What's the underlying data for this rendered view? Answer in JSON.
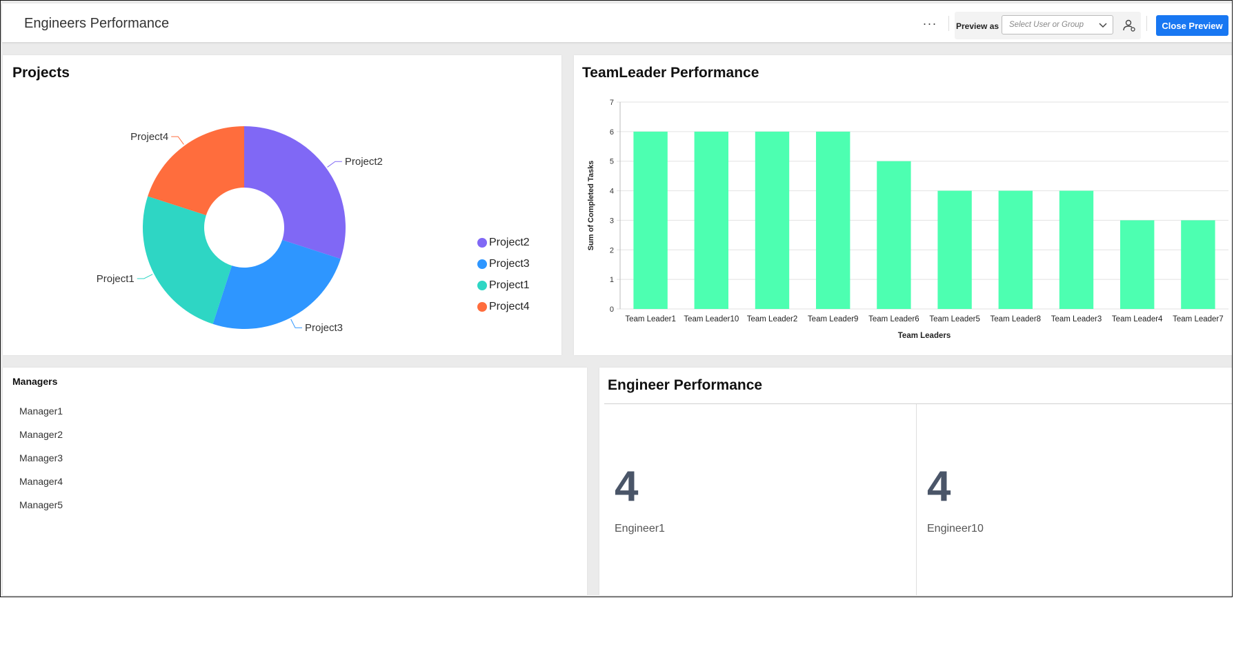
{
  "header": {
    "title": "Engineers Performance",
    "more_label": "···",
    "preview_label": "Preview as",
    "select_placeholder": "Select User or Group",
    "close_label": "Close Preview"
  },
  "projects_widget": {
    "title": "Projects",
    "chart_data": {
      "type": "pie",
      "variant": "donut",
      "title": "Projects",
      "categories": [
        "Project2",
        "Project3",
        "Project1",
        "Project4"
      ],
      "values": [
        30,
        25,
        25,
        20
      ],
      "colors": [
        "#8068f5",
        "#2e96ff",
        "#2ed6c4",
        "#ff6d3d"
      ],
      "legend": "right"
    }
  },
  "teamleader_widget": {
    "title": "TeamLeader Performance",
    "chart_data": {
      "type": "bar",
      "title": "TeamLeader Performance",
      "categories": [
        "Team Leader1",
        "Team Leader10",
        "Team Leader2",
        "Team Leader9",
        "Team Leader6",
        "Team Leader5",
        "Team Leader8",
        "Team Leader3",
        "Team Leader4",
        "Team Leader7"
      ],
      "values": [
        6,
        6,
        6,
        6,
        5,
        4,
        4,
        4,
        3,
        3
      ],
      "xlabel": "Team Leaders",
      "ylabel": "Sum of Completed Tasks",
      "ylim": [
        0,
        7
      ],
      "yticks": [
        "0",
        "1",
        "2",
        "3",
        "4",
        "5",
        "6",
        "7"
      ],
      "color": "#4dffb1",
      "grid": true
    }
  },
  "managers_widget": {
    "title": "Managers",
    "items": [
      "Manager1",
      "Manager2",
      "Manager3",
      "Manager4",
      "Manager5"
    ]
  },
  "engineer_widget": {
    "title": "Engineer Performance",
    "kpis": [
      {
        "value": "4",
        "label": "Engineer1"
      },
      {
        "value": "4",
        "label": "Engineer10"
      }
    ]
  }
}
